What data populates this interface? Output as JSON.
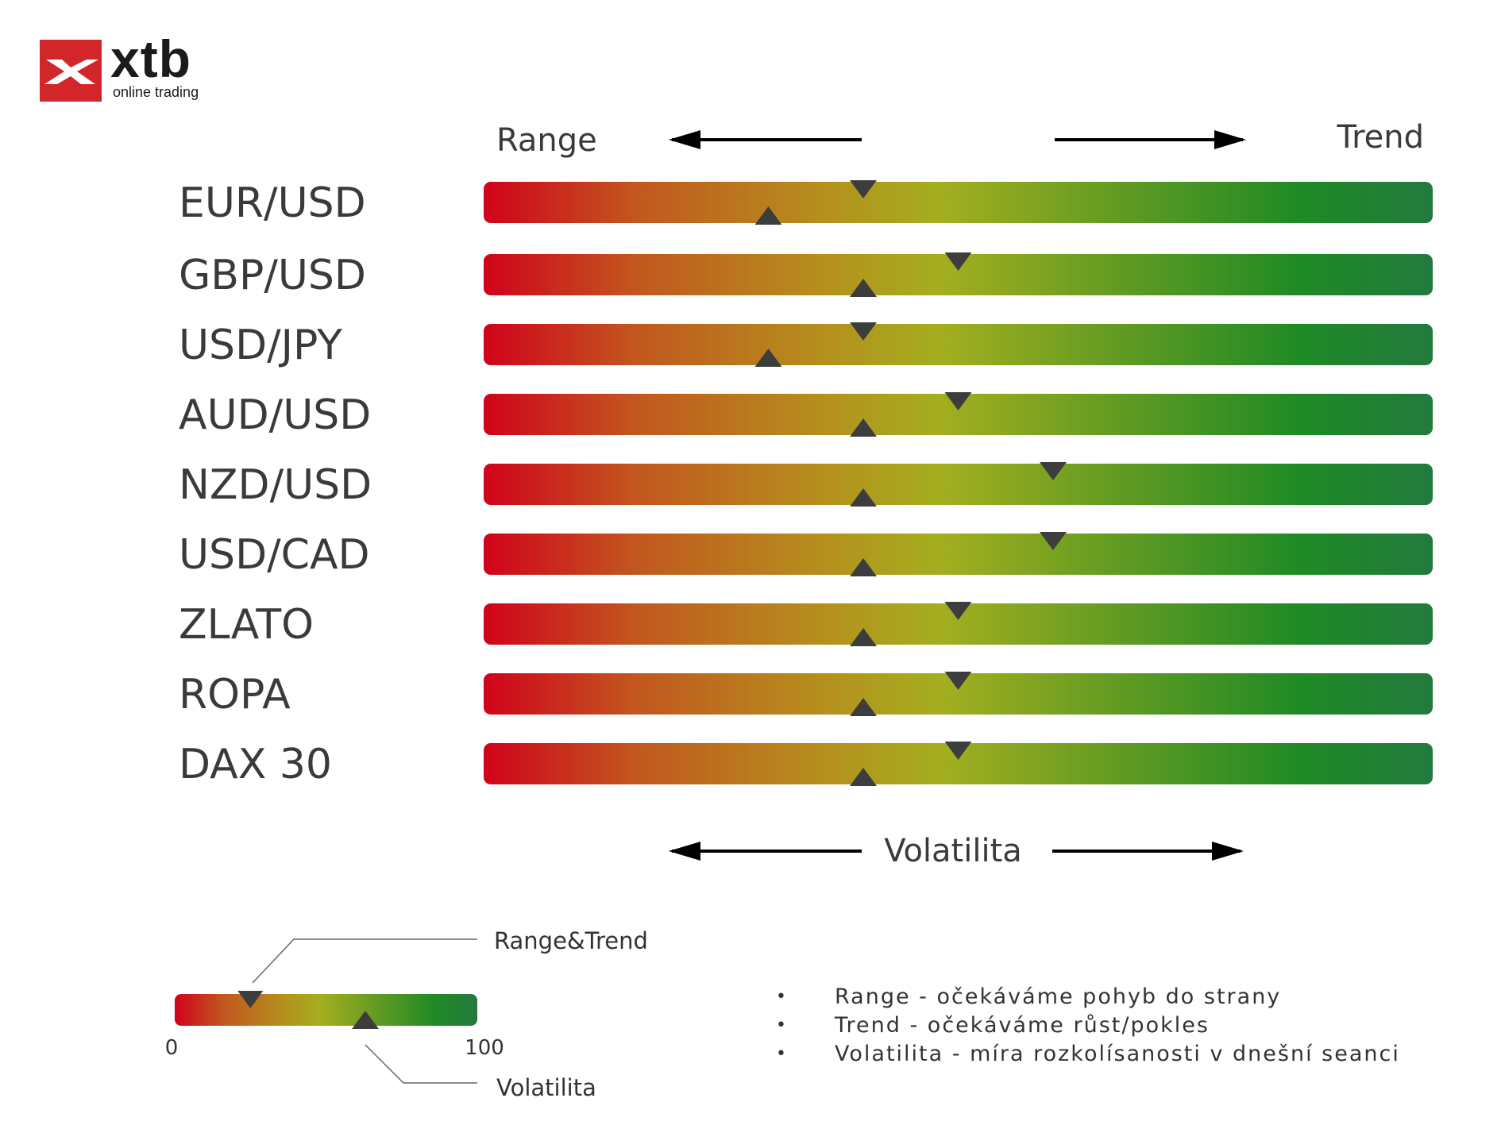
{
  "logo": {
    "name": "xtb",
    "tagline": "online trading",
    "brand_color": "#d2262b"
  },
  "header": {
    "range_label": "Range",
    "trend_label": "Trend",
    "volatility_label": "Volatilita"
  },
  "colors": {
    "gradient": [
      "#d0021b",
      "#c2571f",
      "#b5901d",
      "#a4ae1f",
      "#5e9a23",
      "#1f8a25",
      "#227a3e"
    ],
    "marker": "#3d3d3d"
  },
  "chart_data": {
    "type": "bar",
    "scale": [
      0,
      100
    ],
    "categories": [
      "EUR/USD",
      "GBP/USD",
      "USD/JPY",
      "AUD/USD",
      "NZD/USD",
      "USD/CAD",
      "ZLATO",
      "ROPA",
      "DAX 30"
    ],
    "series": [
      {
        "name": "Range&Trend",
        "values": [
          40,
          50,
          40,
          50,
          60,
          60,
          50,
          50,
          50
        ]
      },
      {
        "name": "Volatilita",
        "values": [
          30,
          40,
          30,
          40,
          40,
          40,
          40,
          40,
          40
        ]
      }
    ]
  },
  "example": {
    "min_label": "0",
    "max_label": "100",
    "range_trend_label": "Range&Trend",
    "volatility_label": "Volatilita",
    "range_trend_value": 25,
    "volatility_value": 63
  },
  "legend": {
    "bullet": "•",
    "items": [
      "Range - očekáváme pohyb do strany",
      "Trend - očekáváme růst/pokles",
      "Volatilita - míra rozkolísanosti v dnešní seanci"
    ]
  }
}
